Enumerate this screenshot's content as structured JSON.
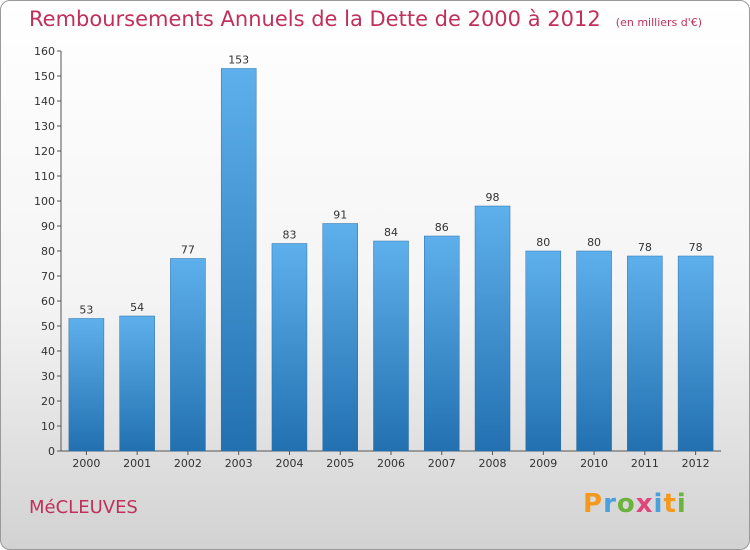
{
  "title": "Remboursements Annuels de la Dette de 2000 à 2012",
  "unit": "(en milliers d'€)",
  "city": "MéCLEUVES",
  "logo": {
    "letters": [
      "P",
      "r",
      "o",
      "x",
      "i",
      "t",
      "i"
    ],
    "colors": [
      "#f39a1e",
      "#4a9fdc",
      "#6cb33e",
      "#e0457b",
      "#4a9fdc",
      "#f39a1e",
      "#6cb33e"
    ]
  },
  "colors": {
    "bar_top": "#5eb0ec",
    "bar_bottom": "#2270b0",
    "accent": "#c0305a"
  },
  "chart_data": {
    "type": "bar",
    "title": "Remboursements Annuels de la Dette de 2000 à 2012",
    "xlabel": "",
    "ylabel": "",
    "categories": [
      "2000",
      "2001",
      "2002",
      "2003",
      "2004",
      "2005",
      "2006",
      "2007",
      "2008",
      "2009",
      "2010",
      "2011",
      "2012"
    ],
    "values": [
      53,
      54,
      77,
      153,
      83,
      91,
      84,
      86,
      98,
      80,
      80,
      78,
      78
    ],
    "ylim": [
      0,
      160
    ],
    "yticks": [
      0,
      10,
      20,
      30,
      40,
      50,
      60,
      70,
      80,
      90,
      100,
      110,
      120,
      130,
      140,
      150,
      160
    ],
    "grid": false,
    "legend": "none"
  }
}
